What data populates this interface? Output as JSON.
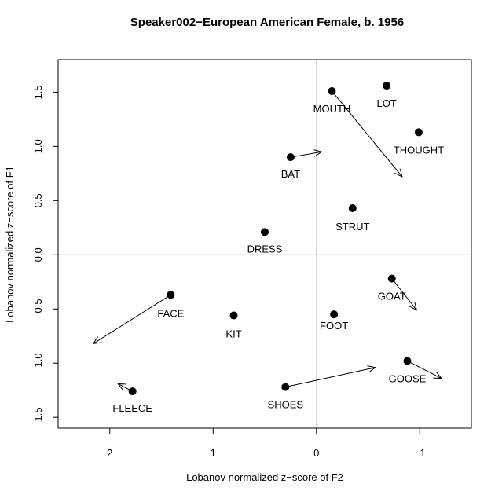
{
  "chart_data": {
    "type": "scatter",
    "title": "Speaker002−European American Female, b. 1956",
    "xlabel": "Lobanov normalized z−score of F2",
    "ylabel": "Lobanov normalized z−score of F1",
    "xlim": [
      2.5,
      -1.5
    ],
    "ylim": [
      1.8,
      -1.6
    ],
    "x_reversed": true,
    "y_reversed": true,
    "x_ticks": [
      2,
      1,
      0,
      -1
    ],
    "x_tick_labels": [
      "2",
      "1",
      "0",
      "−1"
    ],
    "y_ticks": [
      1.5,
      1.0,
      0.5,
      0.0,
      -0.5,
      -1.0,
      -1.5
    ],
    "y_tick_labels": [
      "1.5",
      "1.0",
      "0.5",
      "0.0",
      "−0.5",
      "−1.0",
      "−1.5"
    ],
    "reference_lines": {
      "x": 0,
      "y": 0
    },
    "grid": false,
    "points": [
      {
        "label": "FLEECE",
        "x": 1.78,
        "y": -1.26,
        "arrow_to": {
          "x": 1.92,
          "y": -1.19
        }
      },
      {
        "label": "SHOES",
        "x": 0.3,
        "y": -1.22,
        "arrow_to": {
          "x": -0.57,
          "y": -1.04
        }
      },
      {
        "label": "GOOSE",
        "x": -0.88,
        "y": -0.98,
        "arrow_to": {
          "x": -1.21,
          "y": -1.14
        }
      },
      {
        "label": "FACE",
        "x": 1.41,
        "y": -0.37,
        "arrow_to": {
          "x": 2.16,
          "y": -0.82
        }
      },
      {
        "label": "KIT",
        "x": 0.8,
        "y": -0.56,
        "arrow_to": null
      },
      {
        "label": "FOOT",
        "x": -0.17,
        "y": -0.55,
        "arrow_to": null
      },
      {
        "label": "GOAT",
        "x": -0.73,
        "y": -0.22,
        "arrow_to": {
          "x": -0.97,
          "y": -0.51
        }
      },
      {
        "label": "DRESS",
        "x": 0.5,
        "y": 0.21,
        "arrow_to": null
      },
      {
        "label": "STRUT",
        "x": -0.35,
        "y": 0.43,
        "arrow_to": null
      },
      {
        "label": "BAT",
        "x": 0.25,
        "y": 0.9,
        "arrow_to": {
          "x": -0.05,
          "y": 0.95
        }
      },
      {
        "label": "THOUGHT",
        "x": -0.99,
        "y": 1.13,
        "arrow_to": null
      },
      {
        "label": "MOUTH",
        "x": -0.15,
        "y": 1.51,
        "arrow_to": {
          "x": -0.83,
          "y": 0.72
        }
      },
      {
        "label": "LOT",
        "x": -0.68,
        "y": 1.56,
        "arrow_to": null
      }
    ]
  }
}
